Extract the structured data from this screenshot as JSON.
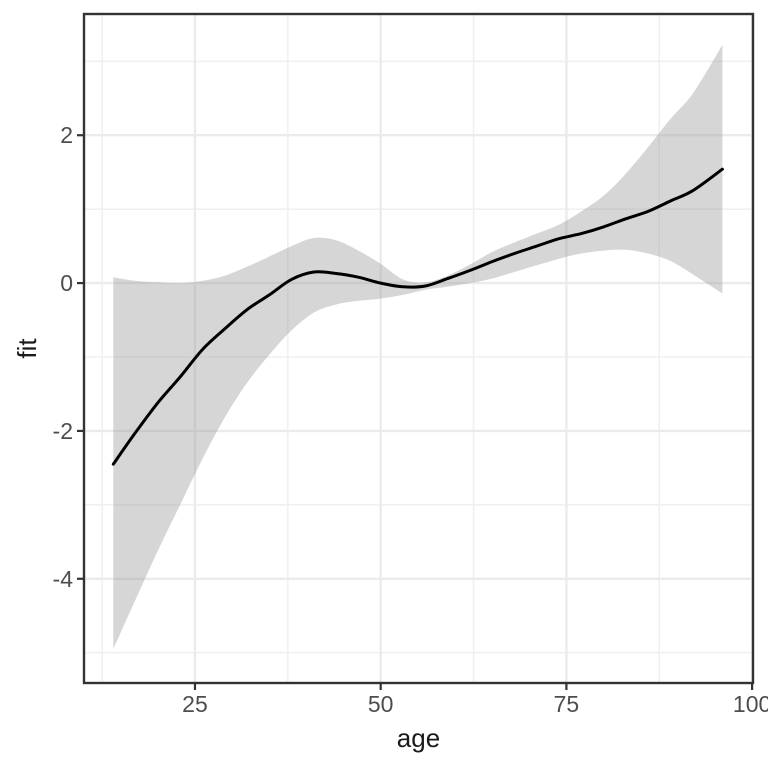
{
  "chart_data": {
    "type": "line",
    "title": "",
    "xlabel": "age",
    "ylabel": "fit",
    "xlim": [
      10.06,
      100.12
    ],
    "ylim": [
      -5.41,
      3.64
    ],
    "grid": true,
    "legend": "none",
    "x_ticks": [
      {
        "value": 25,
        "label": "25"
      },
      {
        "value": 50,
        "label": "50"
      },
      {
        "value": 75,
        "label": "75"
      },
      {
        "value": 100,
        "label": "100"
      }
    ],
    "x_minor_ticks": [
      12.5,
      37.5,
      62.5,
      87.5
    ],
    "y_ticks": [
      {
        "value": 2,
        "label": "2"
      },
      {
        "value": 0,
        "label": "0"
      },
      {
        "value": -2,
        "label": "-2"
      },
      {
        "value": -4,
        "label": "-4"
      }
    ],
    "y_minor_ticks": [
      3,
      1,
      -1,
      -3,
      -5
    ],
    "series": [
      {
        "name": "smooth-fit",
        "x": [
          14,
          17,
          20,
          23,
          26,
          29,
          32,
          35,
          38,
          41,
          44,
          47,
          50,
          53,
          56,
          59,
          62,
          65,
          68,
          71,
          74,
          77,
          80,
          83,
          86,
          89,
          92,
          96
        ],
        "y": [
          -2.45,
          -2.02,
          -1.62,
          -1.27,
          -0.9,
          -0.62,
          -0.36,
          -0.16,
          0.05,
          0.15,
          0.13,
          0.08,
          0.0,
          -0.05,
          -0.04,
          0.06,
          0.17,
          0.29,
          0.4,
          0.5,
          0.6,
          0.67,
          0.76,
          0.87,
          0.97,
          1.11,
          1.25,
          1.54
        ]
      }
    ],
    "ribbon": {
      "name": "confidence-band",
      "x": [
        14,
        17,
        20,
        23,
        26,
        29,
        32,
        35,
        38,
        41,
        44,
        47,
        50,
        53,
        56,
        59,
        62,
        65,
        68,
        71,
        74,
        77,
        80,
        83,
        86,
        89,
        92,
        96
      ],
      "lower": [
        -4.95,
        -4.28,
        -3.62,
        -3.0,
        -2.38,
        -1.82,
        -1.35,
        -0.97,
        -0.64,
        -0.4,
        -0.29,
        -0.24,
        -0.21,
        -0.16,
        -0.09,
        -0.05,
        0.0,
        0.06,
        0.15,
        0.24,
        0.33,
        0.4,
        0.44,
        0.45,
        0.4,
        0.3,
        0.12,
        -0.14
      ],
      "upper": [
        0.08,
        0.03,
        0.01,
        0.0,
        0.03,
        0.1,
        0.22,
        0.36,
        0.5,
        0.61,
        0.58,
        0.44,
        0.26,
        0.05,
        0.01,
        0.1,
        0.25,
        0.42,
        0.55,
        0.67,
        0.79,
        0.97,
        1.18,
        1.48,
        1.84,
        2.22,
        2.56,
        3.22
      ]
    },
    "colors": {
      "line": "#000000",
      "ribbon_fill": "#999999",
      "ribbon_opacity": "0.4",
      "grid_major": "#ebebeb",
      "grid_minor": "#f0f0f0",
      "panel_border": "#333333",
      "tick_label": "#4d4d4d",
      "axis_title": "#1a1a1a",
      "background": "#ffffff"
    }
  }
}
